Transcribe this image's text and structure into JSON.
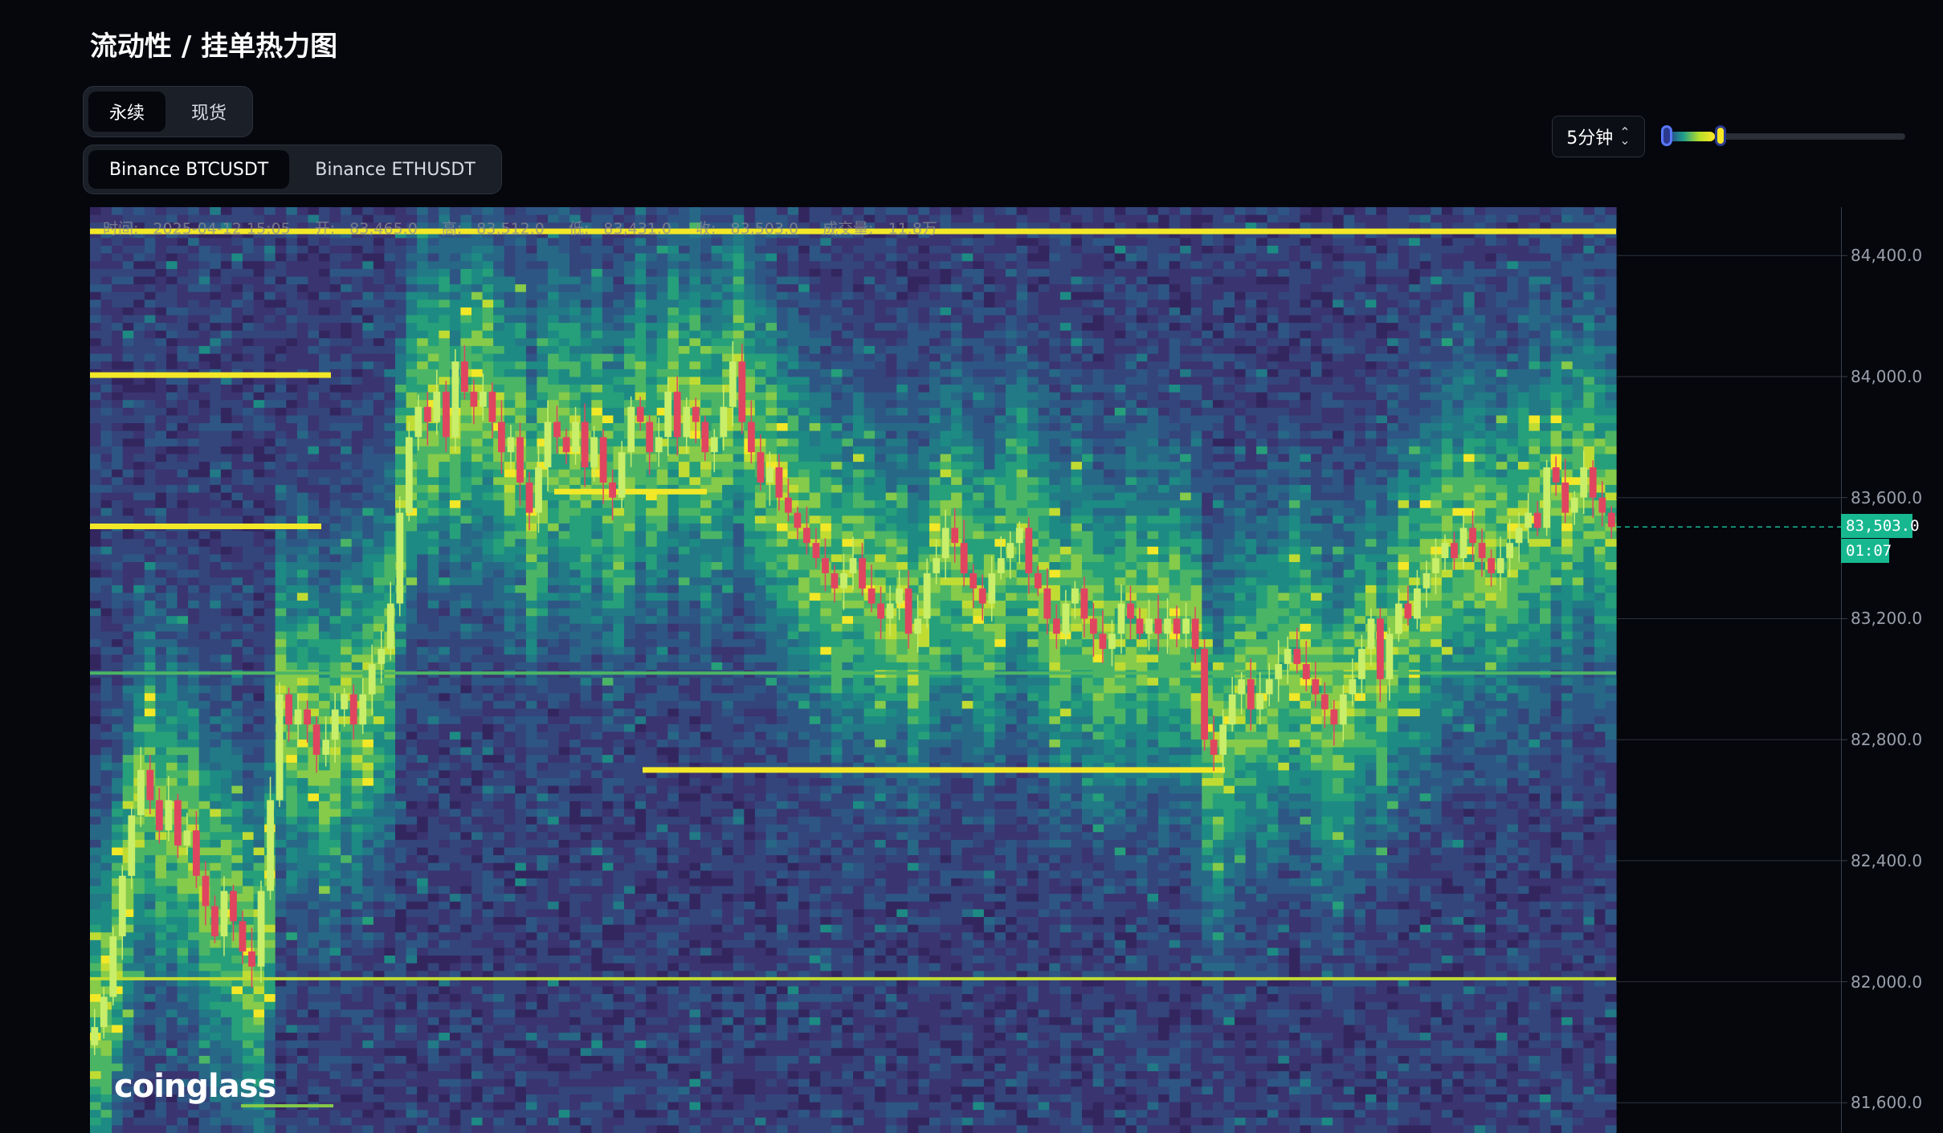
{
  "page": {
    "title": "流动性 / 挂单热力图"
  },
  "market_toggle": {
    "options": [
      "永续",
      "现货"
    ],
    "selected": "永续"
  },
  "pair_toggle": {
    "options": [
      "Binance BTCUSDT",
      "Binance ETHUSDT"
    ],
    "selected": "Binance BTCUSDT"
  },
  "interval": {
    "value": "5分钟"
  },
  "intensity_slider": {
    "low": 0.0,
    "high": 0.2,
    "colors": [
      "#2b3a8f",
      "#1f9e89",
      "#b5de2b",
      "#fde725"
    ]
  },
  "info_bar": {
    "time_label": "时间:",
    "time_value": "2025-04-12 15:05",
    "open_label": "开:",
    "open_value": "83,465.0",
    "high_label": "高:",
    "high_value": "83,512.0",
    "low_label": "低:",
    "low_value": "83,431.0",
    "close_label": "收:",
    "close_value": "83,503.0",
    "volume_label": "成交量:",
    "volume_value": "11.8万"
  },
  "watermark": "coinglass",
  "current_price": {
    "price": "83,503.0",
    "countdown": "01:07"
  },
  "colors": {
    "up": "#c8ee6a",
    "down": "#e0455f",
    "tag": "#17b890",
    "bg": "#05070d"
  },
  "chart_data": {
    "type": "heatmap",
    "overlay": "candlestick",
    "y_axis": {
      "ticks": [
        "84,400.0",
        "84,000.0",
        "83,600.0",
        "83,200.0",
        "82,800.0",
        "82,400.0",
        "82,000.0",
        "81,600.0"
      ],
      "range": [
        81500,
        84560
      ]
    },
    "candles_close": [
      81850,
      81950,
      82150,
      82350,
      82550,
      82700,
      82600,
      82500,
      82600,
      82450,
      82500,
      82350,
      82250,
      82150,
      82300,
      82200,
      82100,
      82050,
      82300,
      82600,
      82950,
      82850,
      82900,
      82850,
      82750,
      82800,
      82900,
      82950,
      82850,
      82950,
      83050,
      83100,
      83250,
      83550,
      83800,
      83900,
      83850,
      83950,
      83800,
      84050,
      83950,
      83900,
      83950,
      83850,
      83750,
      83800,
      83650,
      83550,
      83700,
      83850,
      83800,
      83750,
      83850,
      83700,
      83800,
      83650,
      83600,
      83750,
      83900,
      83850,
      83750,
      83800,
      83950,
      83800,
      83900,
      83850,
      83750,
      83800,
      83900,
      84050,
      83850,
      83750,
      83650,
      83700,
      83600,
      83550,
      83500,
      83450,
      83400,
      83350,
      83300,
      83350,
      83400,
      83300,
      83250,
      83200,
      83250,
      83300,
      83150,
      83200,
      83350,
      83400,
      83500,
      83450,
      83350,
      83300,
      83250,
      83350,
      83400,
      83450,
      83500,
      83350,
      83300,
      83200,
      83150,
      83250,
      83300,
      83200,
      83150,
      83100,
      83150,
      83250,
      83200,
      83150,
      83200,
      83150,
      83200,
      83150,
      83200,
      83100,
      82800,
      82750,
      82850,
      82950,
      83000,
      82900,
      82950,
      83000,
      83050,
      83100,
      83050,
      83000,
      82950,
      82900,
      82850,
      82950,
      83000,
      83100,
      83200,
      83000,
      83150,
      83250,
      83200,
      83300,
      83350,
      83400,
      83450,
      83400,
      83500,
      83450,
      83400,
      83350,
      83400,
      83450,
      83500,
      83550,
      83500,
      83700,
      83650,
      83550,
      83600,
      83700,
      83600,
      83550,
      83503
    ],
    "liquidity_walls": [
      {
        "price": 84480,
        "strength": 1.0
      },
      {
        "price": 84005,
        "strength": 1.0
      },
      {
        "price": 83505,
        "strength": 1.0
      },
      {
        "price": 83620,
        "strength": 0.9
      },
      {
        "price": 82700,
        "strength": 1.0
      },
      {
        "price": 82010,
        "strength": 0.7
      },
      {
        "price": 81590,
        "strength": 0.6
      },
      {
        "price": 83020,
        "strength": 0.4
      }
    ]
  }
}
